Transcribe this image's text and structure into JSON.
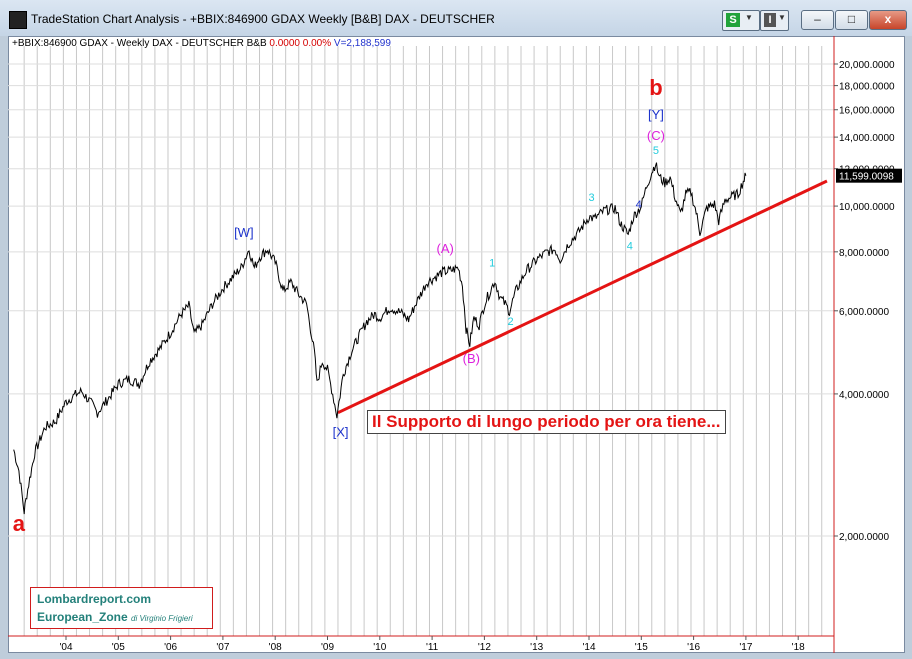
{
  "window": {
    "title": "TradeStation Chart Analysis - +BBIX:846900 GDAX Weekly [B&B] DAX - DEUTSCHER",
    "strategy_button": "S",
    "indicator_button": "I",
    "minimize": "–",
    "maximize": "□",
    "close": "x"
  },
  "header": {
    "symbol_info": "+BBIX:846900 GDAX - Weekly  DAX - DEUTSCHER  B&B",
    "change": "0.0000",
    "change_pct": "0.00%",
    "volume": "V=2,188,599"
  },
  "branding": {
    "line1": "Lombardreport.com",
    "line2": "European_Zone",
    "line2_suffix": "di Virginio Frigieri"
  },
  "callout": "Il Supporto di lungo periodo per ora tiene...",
  "chart_data": {
    "type": "line",
    "title": "",
    "scale": "log",
    "ylim": [
      1400,
      22500
    ],
    "yticks": [
      20000,
      18000,
      16000,
      14000,
      12000,
      10000,
      8000,
      6000,
      4000,
      2000
    ],
    "ytick_labels": [
      "20,000.0000",
      "18,000.0000",
      "16,000.0000",
      "14,000.0000",
      "12,000.0000",
      "10,000.0000",
      "8,000.0000",
      "6,000.0000",
      "4,000.0000",
      "2,000.0000"
    ],
    "xlim": [
      2003.0,
      2018.8
    ],
    "xticks": [
      2004,
      2005,
      2006,
      2007,
      2008,
      2009,
      2010,
      2011,
      2012,
      2013,
      2014,
      2015,
      2016,
      2017,
      2018
    ],
    "xtick_labels": [
      "'04",
      "'05",
      "'06",
      "'07",
      "'08",
      "'09",
      "'10",
      "'11",
      "'12",
      "'13",
      "'14",
      "'15",
      "'16",
      "'17",
      "'18"
    ],
    "last_value": 11599.0098,
    "last_value_label": "11,599.0098",
    "grid": true,
    "series": [
      {
        "color": "#000000",
        "points": [
          [
            2003.0,
            3050
          ],
          [
            2003.1,
            2750
          ],
          [
            2003.2,
            2250
          ],
          [
            2003.25,
            2450
          ],
          [
            2003.4,
            3000
          ],
          [
            2003.6,
            3400
          ],
          [
            2003.8,
            3500
          ],
          [
            2004.0,
            3850
          ],
          [
            2004.2,
            4000
          ],
          [
            2004.3,
            4050
          ],
          [
            2004.5,
            3800
          ],
          [
            2004.6,
            3650
          ],
          [
            2004.8,
            3900
          ],
          [
            2005.0,
            4200
          ],
          [
            2005.2,
            4300
          ],
          [
            2005.4,
            4200
          ],
          [
            2005.6,
            4700
          ],
          [
            2005.8,
            5000
          ],
          [
            2006.0,
            5400
          ],
          [
            2006.2,
            5900
          ],
          [
            2006.35,
            6150
          ],
          [
            2006.45,
            5350
          ],
          [
            2006.6,
            5600
          ],
          [
            2006.8,
            6200
          ],
          [
            2007.0,
            6700
          ],
          [
            2007.2,
            7100
          ],
          [
            2007.35,
            7400
          ],
          [
            2007.5,
            8100
          ],
          [
            2007.6,
            7400
          ],
          [
            2007.7,
            7800
          ],
          [
            2007.85,
            8100
          ],
          [
            2008.0,
            7600
          ],
          [
            2008.15,
            6600
          ],
          [
            2008.3,
            6900
          ],
          [
            2008.45,
            6500
          ],
          [
            2008.6,
            6200
          ],
          [
            2008.75,
            4900
          ],
          [
            2008.8,
            4200
          ],
          [
            2008.9,
            4700
          ],
          [
            2009.0,
            4500
          ],
          [
            2009.1,
            4000
          ],
          [
            2009.18,
            3600
          ],
          [
            2009.3,
            4400
          ],
          [
            2009.45,
            4900
          ],
          [
            2009.6,
            5300
          ],
          [
            2009.75,
            5700
          ],
          [
            2009.9,
            5900
          ],
          [
            2010.0,
            5800
          ],
          [
            2010.2,
            6100
          ],
          [
            2010.4,
            5950
          ],
          [
            2010.55,
            5750
          ],
          [
            2010.7,
            6250
          ],
          [
            2010.9,
            6900
          ],
          [
            2011.0,
            7000
          ],
          [
            2011.2,
            7250
          ],
          [
            2011.35,
            7300
          ],
          [
            2011.5,
            7400
          ],
          [
            2011.58,
            6800
          ],
          [
            2011.65,
            5500
          ],
          [
            2011.72,
            5100
          ],
          [
            2011.8,
            5800
          ],
          [
            2011.9,
            5600
          ],
          [
            2012.0,
            6200
          ],
          [
            2012.2,
            6950
          ],
          [
            2012.3,
            6400
          ],
          [
            2012.4,
            6200
          ],
          [
            2012.48,
            5980
          ],
          [
            2012.6,
            6600
          ],
          [
            2012.8,
            7300
          ],
          [
            2013.0,
            7700
          ],
          [
            2013.2,
            8000
          ],
          [
            2013.35,
            8100
          ],
          [
            2013.45,
            7700
          ],
          [
            2013.6,
            8300
          ],
          [
            2013.8,
            8800
          ],
          [
            2014.0,
            9500
          ],
          [
            2014.1,
            9400
          ],
          [
            2014.3,
            9800
          ],
          [
            2014.5,
            9900
          ],
          [
            2014.6,
            9200
          ],
          [
            2014.75,
            8700
          ],
          [
            2014.85,
            9500
          ],
          [
            2015.0,
            10000
          ],
          [
            2015.1,
            11000
          ],
          [
            2015.2,
            11800
          ],
          [
            2015.27,
            12300
          ],
          [
            2015.35,
            11500
          ],
          [
            2015.45,
            11200
          ],
          [
            2015.55,
            11500
          ],
          [
            2015.65,
            10400
          ],
          [
            2015.75,
            9600
          ],
          [
            2015.85,
            10600
          ],
          [
            2015.95,
            10700
          ],
          [
            2016.05,
            9700
          ],
          [
            2016.12,
            8800
          ],
          [
            2016.25,
            9900
          ],
          [
            2016.4,
            10100
          ],
          [
            2016.48,
            9300
          ],
          [
            2016.6,
            10300
          ],
          [
            2016.75,
            10500
          ],
          [
            2016.85,
            10600
          ],
          [
            2016.95,
            11300
          ],
          [
            2017.0,
            11599.0098
          ]
        ]
      }
    ],
    "trendline": {
      "color": "#e41414",
      "points": [
        [
          2009.2,
          3650
        ],
        [
          2018.55,
          11300
        ]
      ]
    },
    "annotations": [
      {
        "text": "a",
        "x": 2003.1,
        "y": 2050,
        "color": "#e41414",
        "size": "large"
      },
      {
        "text": "[W]",
        "x": 2007.4,
        "y": 8600,
        "color": "#1d33cc",
        "size": "normal"
      },
      {
        "text": "[X]",
        "x": 2009.25,
        "y": 3250,
        "color": "#1d33cc",
        "size": "normal"
      },
      {
        "text": "(A)",
        "x": 2011.25,
        "y": 7950,
        "color": "#dd20dd",
        "size": "normal"
      },
      {
        "text": "(B)",
        "x": 2011.75,
        "y": 4650,
        "color": "#dd20dd",
        "size": "normal"
      },
      {
        "text": "1",
        "x": 2012.15,
        "y": 7450,
        "color": "#22ccdd",
        "size": "small"
      },
      {
        "text": "2",
        "x": 2012.5,
        "y": 5600,
        "color": "#22ccdd",
        "size": "small"
      },
      {
        "text": "3",
        "x": 2014.05,
        "y": 10250,
        "color": "#22ccdd",
        "size": "small"
      },
      {
        "text": "4",
        "x": 2014.78,
        "y": 8100,
        "color": "#22ccdd",
        "size": "small"
      },
      {
        "text": "5",
        "x": 2015.28,
        "y": 12900,
        "color": "#22ccdd",
        "size": "small"
      },
      {
        "text": "(C)",
        "x": 2015.28,
        "y": 13800,
        "color": "#dd20dd",
        "size": "normal"
      },
      {
        "text": "[Y]",
        "x": 2015.28,
        "y": 15300,
        "color": "#1d33cc",
        "size": "normal"
      },
      {
        "text": "b",
        "x": 2015.28,
        "y": 17200,
        "color": "#e41414",
        "size": "large"
      },
      {
        "text": "4",
        "x": 2014.95,
        "y": 9900,
        "color": "#1d33cc",
        "size": "small"
      }
    ]
  }
}
